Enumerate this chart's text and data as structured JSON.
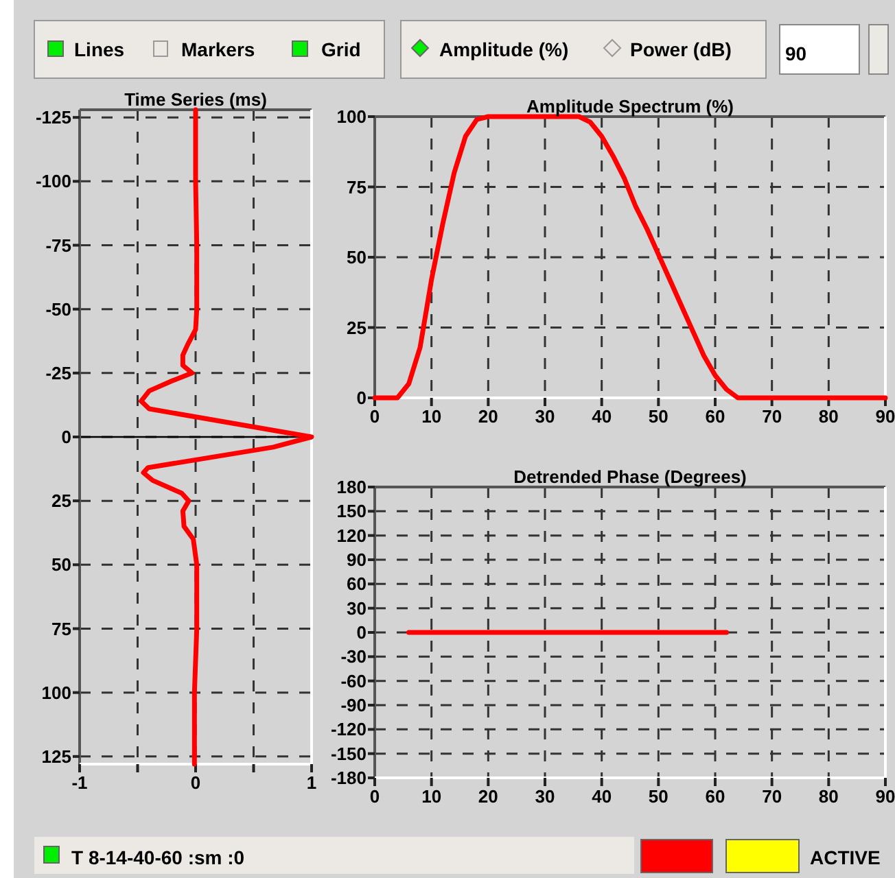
{
  "chart_data": [
    {
      "type": "line",
      "title": "Time Series (ms)",
      "xlim": [
        -1,
        1
      ],
      "xticks": [
        -1,
        {
          "value": -0.5,
          "label": null
        },
        0,
        {
          "value": 0.5,
          "label": null
        },
        1
      ],
      "ylim": [
        128,
        -128
      ],
      "yticks": [
        -125,
        -100,
        -75,
        -50,
        -25,
        0,
        25,
        50,
        75,
        100,
        125
      ],
      "grid": true,
      "line_style": "solid",
      "marker": "none",
      "ref_lines": [
        {
          "axis": "y",
          "value": 0,
          "color": "#000000"
        }
      ],
      "series": [
        {
          "color": "#ff0000",
          "x": [
            0.0,
            0.0,
            0.01,
            0.01,
            0.0,
            -0.07,
            -0.11,
            -0.11,
            -0.03,
            -0.2,
            -0.4,
            -0.47,
            -0.4,
            1.0,
            0.67,
            -0.41,
            -0.45,
            -0.37,
            -0.12,
            -0.06,
            -0.11,
            -0.1,
            -0.02,
            0.01,
            0.01,
            -0.01,
            -0.01
          ],
          "values": [
            -128,
            -100,
            -75,
            -50,
            -42,
            -36,
            -32,
            -28,
            -25,
            -22,
            -18,
            -14,
            -11,
            0,
            4,
            12,
            14,
            17,
            22,
            25,
            29,
            35,
            40,
            50,
            75,
            100,
            128
          ]
        }
      ]
    },
    {
      "type": "line",
      "title": "Amplitude Spectrum (%)",
      "xlim": [
        0,
        90
      ],
      "xticks": [
        0,
        10,
        20,
        30,
        40,
        50,
        60,
        70,
        80,
        90
      ],
      "ylim": [
        0,
        100
      ],
      "yticks": [
        0,
        25,
        50,
        75,
        100
      ],
      "grid": true,
      "line_style": "solid",
      "marker": "none",
      "x": [
        0,
        4,
        6,
        8,
        10,
        12,
        14,
        16,
        18,
        20,
        36,
        38,
        40,
        42,
        44,
        46,
        48,
        50,
        52,
        54,
        56,
        58,
        60,
        62,
        64,
        90
      ],
      "series": [
        {
          "color": "#ff0000",
          "values": [
            0,
            0,
            5,
            18,
            42,
            62,
            80,
            93,
            99,
            100,
            100,
            98,
            93,
            86,
            78,
            68,
            60,
            51,
            42,
            33,
            24,
            15,
            8,
            3,
            0,
            0
          ]
        }
      ]
    },
    {
      "type": "line",
      "title": "Detrended Phase (Degrees)",
      "xlim": [
        0,
        90
      ],
      "xticks": [
        0,
        10,
        20,
        30,
        40,
        50,
        60,
        70,
        80,
        90
      ],
      "ylim": [
        -180,
        180
      ],
      "yticks": [
        -180,
        -150,
        -120,
        -90,
        -60,
        -30,
        0,
        30,
        60,
        90,
        120,
        150,
        180
      ],
      "grid": true,
      "line_style": "solid",
      "marker": "none",
      "series": [
        {
          "color": "#ff0000",
          "x": [
            6,
            62
          ],
          "values": [
            0,
            0
          ]
        }
      ]
    },
    {
      "type": "other",
      "annotations": [
        "Lines",
        "Markers",
        "Grid",
        "Amplitude (%)",
        "Power (dB)",
        "90",
        "T 8-14-40-60 :sm :0",
        "ACTIVE"
      ]
    }
  ]
}
